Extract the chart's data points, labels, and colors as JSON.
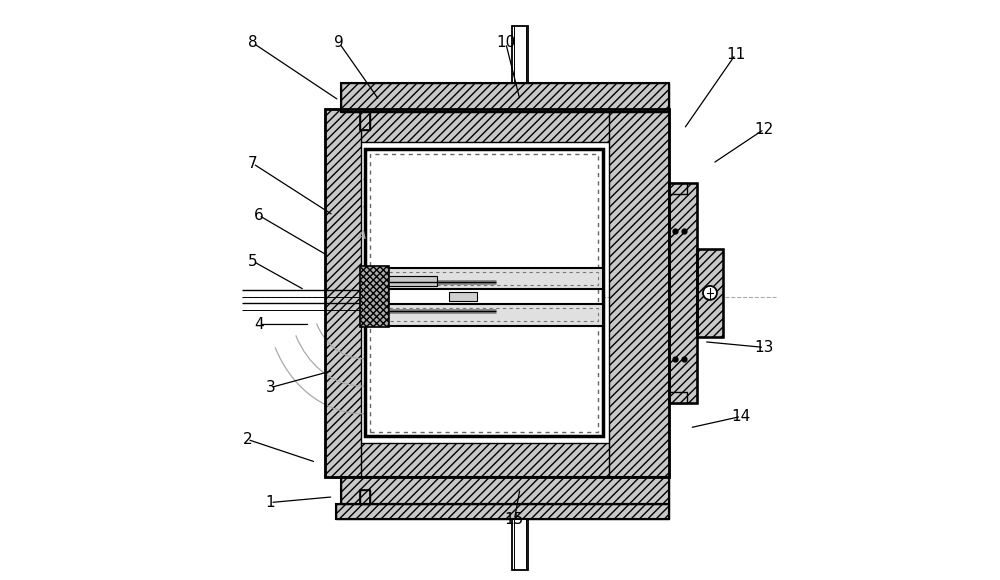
{
  "bg_color": "#ffffff",
  "line_color": "#000000",
  "figsize": [
    10.0,
    5.8
  ],
  "dpi": 100,
  "annotations": [
    [
      "8",
      [
        0.07,
        0.93
      ],
      [
        0.22,
        0.83
      ]
    ],
    [
      "9",
      [
        0.22,
        0.93
      ],
      [
        0.29,
        0.83
      ]
    ],
    [
      "10",
      [
        0.51,
        0.93
      ],
      [
        0.535,
        0.83
      ]
    ],
    [
      "11",
      [
        0.91,
        0.91
      ],
      [
        0.82,
        0.78
      ]
    ],
    [
      "12",
      [
        0.96,
        0.78
      ],
      [
        0.87,
        0.72
      ]
    ],
    [
      "7",
      [
        0.07,
        0.72
      ],
      [
        0.21,
        0.63
      ]
    ],
    [
      "6",
      [
        0.08,
        0.63
      ],
      [
        0.2,
        0.56
      ]
    ],
    [
      "5",
      [
        0.07,
        0.55
      ],
      [
        0.16,
        0.5
      ]
    ],
    [
      "4",
      [
        0.08,
        0.44
      ],
      [
        0.17,
        0.44
      ]
    ],
    [
      "3",
      [
        0.1,
        0.33
      ],
      [
        0.21,
        0.36
      ]
    ],
    [
      "2",
      [
        0.06,
        0.24
      ],
      [
        0.18,
        0.2
      ]
    ],
    [
      "1",
      [
        0.1,
        0.13
      ],
      [
        0.21,
        0.14
      ]
    ],
    [
      "13",
      [
        0.96,
        0.4
      ],
      [
        0.855,
        0.41
      ]
    ],
    [
      "14",
      [
        0.92,
        0.28
      ],
      [
        0.83,
        0.26
      ]
    ],
    [
      "15",
      [
        0.525,
        0.1
      ],
      [
        0.535,
        0.155
      ]
    ]
  ]
}
